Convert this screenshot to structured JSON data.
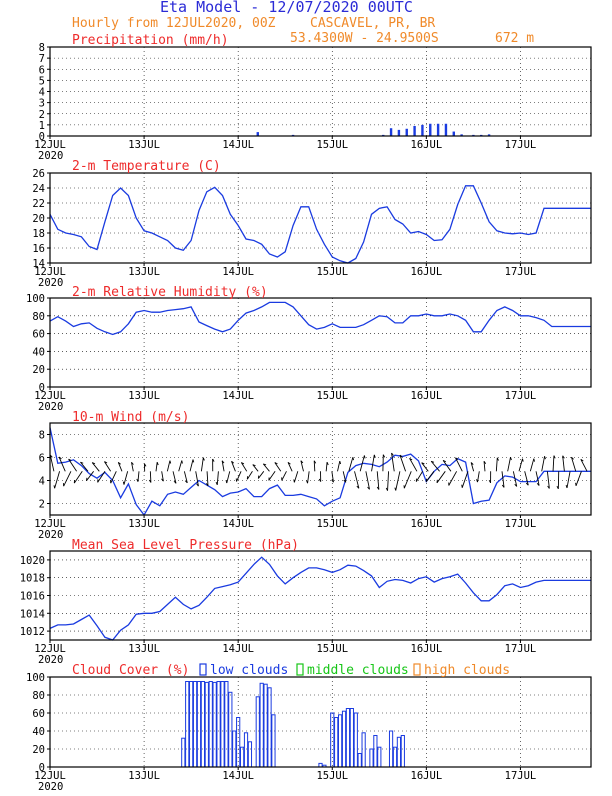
{
  "header": {
    "title": "Eta Model - 12/07/2020 00UTC",
    "subtitle": "Hourly from 12JUL2020, 00Z",
    "location": "CASCAVEL, PR, BR",
    "coords": "53.4300W - 24.9500S",
    "elevation": "672  m"
  },
  "colors": {
    "title": "#2b2bd6",
    "subtitle": "#f08a2a",
    "panel_title": "#ee2b2b",
    "series": "#1a3be0",
    "low": "#1a3be0",
    "middle": "#17c617",
    "high": "#f08a2a"
  },
  "chart_data": [
    {
      "id": "precip",
      "type": "bar",
      "title": "Precipitation (mm/h)",
      "ylim": [
        0,
        8
      ],
      "yticks": [
        0,
        1,
        2,
        3,
        4,
        5,
        6,
        7,
        8
      ],
      "x_labels": [
        "12JUL",
        "13JUL",
        "14JUL",
        "15JUL",
        "16JUL",
        "17JUL"
      ],
      "year_label": "2020",
      "x": [
        53,
        62,
        85,
        87,
        89,
        91,
        93,
        95,
        97,
        99,
        101,
        103,
        105,
        108,
        110,
        112
      ],
      "values": [
        0.35,
        0.1,
        0.1,
        0.7,
        0.55,
        0.65,
        0.9,
        1.0,
        1.1,
        1.1,
        1.1,
        0.4,
        0.15,
        0.1,
        0.1,
        0.15
      ]
    },
    {
      "id": "temp",
      "type": "line",
      "title": "2-m Temperature (C)",
      "ylim": [
        14,
        26
      ],
      "yticks": [
        14,
        16,
        18,
        20,
        22,
        24,
        26
      ],
      "x_labels": [
        "12JUL",
        "13JUL",
        "14JUL",
        "15JUL",
        "16JUL",
        "17JUL"
      ],
      "year_label": "2020",
      "x": [
        0,
        2,
        4,
        6,
        8,
        10,
        12,
        14,
        16,
        18,
        20,
        22,
        24,
        26,
        28,
        30,
        32,
        34,
        36,
        38,
        40,
        42,
        44,
        46,
        48,
        50,
        52,
        54,
        56,
        58,
        60,
        62,
        64,
        66,
        68,
        70,
        72,
        74,
        76,
        78,
        80,
        82,
        84,
        86,
        88,
        90,
        92,
        94,
        96,
        98,
        100,
        102,
        104,
        106,
        108,
        110,
        112,
        114,
        116,
        118,
        120,
        122,
        124,
        126,
        128,
        130,
        132,
        134,
        136,
        138
      ],
      "values": [
        20.5,
        18.5,
        18,
        17.8,
        17.5,
        16.2,
        15.8,
        19.5,
        23,
        24,
        23,
        20,
        18.3,
        18,
        17.5,
        17,
        16,
        15.7,
        17,
        21,
        23.5,
        24.1,
        23,
        20.5,
        19,
        17.2,
        17,
        16.5,
        15.2,
        14.8,
        15.5,
        19,
        21.5,
        21.5,
        18.5,
        16.5,
        14.8,
        14.3,
        14.0,
        14.6,
        16.8,
        20.5,
        21.3,
        21.5,
        19.8,
        19.2,
        18,
        18.2,
        17.8,
        17,
        17.1,
        18.5,
        21.8,
        24.3,
        24.3,
        22,
        19.5,
        18.3,
        18,
        17.9,
        18,
        17.8,
        18,
        21.3,
        21.3,
        21.3,
        21.3,
        21.3,
        21.3,
        21.3
      ]
    },
    {
      "id": "rh",
      "type": "line",
      "title": "2-m Relative Humidity (%)",
      "ylim": [
        0,
        100
      ],
      "yticks": [
        0,
        20,
        40,
        60,
        80,
        100
      ],
      "x_labels": [
        "12JUL",
        "13JUL",
        "14JUL",
        "15JUL",
        "16JUL",
        "17JUL"
      ],
      "year_label": "2020",
      "x": [
        0,
        2,
        4,
        6,
        8,
        10,
        12,
        14,
        16,
        18,
        20,
        22,
        24,
        26,
        28,
        30,
        32,
        34,
        36,
        38,
        40,
        42,
        44,
        46,
        48,
        50,
        52,
        54,
        56,
        58,
        60,
        62,
        64,
        66,
        68,
        70,
        72,
        74,
        76,
        78,
        80,
        82,
        84,
        86,
        88,
        90,
        92,
        94,
        96,
        98,
        100,
        102,
        104,
        106,
        108,
        110,
        112,
        114,
        116,
        118,
        120,
        122,
        124,
        126,
        128,
        130,
        132,
        134,
        136,
        138
      ],
      "values": [
        74,
        79,
        74,
        68,
        71,
        72,
        66,
        62,
        59,
        62,
        71,
        84,
        86,
        84,
        84,
        86,
        87,
        88,
        90,
        73,
        69,
        65,
        62,
        65,
        75,
        83,
        86,
        90,
        95,
        95,
        95,
        90,
        80,
        70,
        65,
        67,
        71,
        67,
        67,
        67,
        70,
        75,
        80,
        79,
        72,
        72,
        80,
        80,
        82,
        80,
        80,
        82,
        80,
        75,
        62,
        62,
        75,
        86,
        90,
        86,
        80,
        80,
        78,
        75,
        68,
        68,
        68,
        68,
        68,
        68
      ]
    },
    {
      "id": "wind",
      "type": "line",
      "title": "10-m Wind (m/s)",
      "ylim": [
        1,
        9
      ],
      "yticks": [
        2,
        4,
        6,
        8
      ],
      "x_labels": [
        "12JUL",
        "13JUL",
        "14JUL",
        "15JUL",
        "16JUL",
        "17JUL"
      ],
      "year_label": "2020",
      "x": [
        0,
        2,
        4,
        6,
        8,
        10,
        12,
        14,
        16,
        18,
        20,
        22,
        24,
        26,
        28,
        30,
        32,
        34,
        36,
        38,
        40,
        42,
        44,
        46,
        48,
        50,
        52,
        54,
        56,
        58,
        60,
        62,
        64,
        66,
        68,
        70,
        72,
        74,
        76,
        78,
        80,
        82,
        84,
        86,
        88,
        90,
        92,
        94,
        96,
        98,
        100,
        102,
        104,
        106,
        108,
        110,
        112,
        114,
        116,
        118,
        120,
        122,
        124,
        126,
        128,
        130,
        132,
        134,
        136,
        138
      ],
      "values": [
        8.6,
        5.5,
        5.6,
        5.8,
        5.3,
        4.6,
        4.2,
        4.7,
        4.0,
        2.5,
        3.7,
        1.9,
        1.0,
        2.2,
        1.8,
        2.8,
        3.0,
        2.8,
        3.4,
        4.0,
        3.6,
        3.2,
        2.6,
        2.9,
        3.0,
        3.3,
        2.6,
        2.6,
        3.3,
        3.6,
        2.7,
        2.7,
        2.8,
        2.6,
        2.4,
        1.8,
        2.2,
        2.5,
        4.7,
        5.3,
        5.5,
        5.4,
        5.2,
        5.6,
        6.2,
        6.1,
        6.3,
        5.7,
        3.9,
        4.8,
        5.4,
        5.3,
        5.9,
        5.6,
        2.0,
        2.2,
        2.3,
        3.8,
        4.4,
        4.3,
        3.9,
        3.9,
        3.9,
        4.8,
        4.8,
        4.8,
        4.8,
        4.8,
        4.8,
        4.8
      ],
      "arrow_count": 95
    },
    {
      "id": "mslp",
      "type": "line",
      "title": "Mean Sea Level Pressure (hPa)",
      "ylim": [
        1011,
        1021
      ],
      "yticks": [
        1012,
        1014,
        1016,
        1018,
        1020
      ],
      "x_labels": [
        "12JUL",
        "13JUL",
        "14JUL",
        "15JUL",
        "16JUL",
        "17JUL"
      ],
      "year_label": "2020",
      "x": [
        0,
        2,
        4,
        6,
        8,
        10,
        12,
        14,
        16,
        18,
        20,
        22,
        24,
        26,
        28,
        30,
        32,
        34,
        36,
        38,
        40,
        42,
        44,
        46,
        48,
        50,
        52,
        54,
        56,
        58,
        60,
        62,
        64,
        66,
        68,
        70,
        72,
        74,
        76,
        78,
        80,
        82,
        84,
        86,
        88,
        90,
        92,
        94,
        96,
        98,
        100,
        102,
        104,
        106,
        108,
        110,
        112,
        114,
        116,
        118,
        120,
        122,
        124,
        126,
        128,
        130,
        132,
        134,
        136,
        138
      ],
      "values": [
        1012.3,
        1012.7,
        1012.7,
        1012.8,
        1013.3,
        1013.8,
        1012.6,
        1011.3,
        1011.0,
        1012.1,
        1012.7,
        1013.9,
        1014.0,
        1014.0,
        1014.2,
        1015.0,
        1015.8,
        1015.0,
        1014.5,
        1014.9,
        1015.8,
        1016.8,
        1017.0,
        1017.2,
        1017.5,
        1018.5,
        1019.5,
        1020.3,
        1019.5,
        1018.2,
        1017.3,
        1018.0,
        1018.6,
        1019.1,
        1019.1,
        1018.9,
        1018.6,
        1018.9,
        1019.4,
        1019.3,
        1018.8,
        1018.2,
        1016.9,
        1017.6,
        1017.8,
        1017.7,
        1017.4,
        1017.9,
        1018.1,
        1017.5,
        1017.9,
        1018.1,
        1018.4,
        1017.4,
        1016.3,
        1015.4,
        1015.4,
        1016.1,
        1017.1,
        1017.3,
        1016.9,
        1017.1,
        1017.5,
        1017.7,
        1017.7,
        1017.7,
        1017.7,
        1017.7,
        1017.7,
        1017.7
      ]
    },
    {
      "id": "cloud",
      "type": "bar",
      "title": "Cloud Cover (%)",
      "legend": [
        "low clouds",
        "middle clouds",
        "high clouds"
      ],
      "ylim": [
        0,
        100
      ],
      "yticks": [
        0,
        20,
        40,
        60,
        80,
        100
      ],
      "x_labels": [
        "12JUL",
        "13JUL",
        "14JUL",
        "15JUL",
        "16JUL",
        "17JUL"
      ],
      "year_label": "2020",
      "x": [
        34,
        35,
        36,
        37,
        38,
        39,
        40,
        41,
        42,
        43,
        44,
        45,
        46,
        47,
        48,
        49,
        50,
        51,
        52,
        53,
        54,
        55,
        56,
        57,
        69,
        70,
        72,
        73,
        74,
        75,
        76,
        77,
        78,
        79,
        80,
        81,
        82,
        83,
        84,
        85,
        86,
        87,
        88,
        89,
        90
      ],
      "values": [
        32,
        95,
        95,
        95,
        95,
        95,
        94,
        95,
        94,
        95,
        95,
        95,
        83,
        40,
        55,
        22,
        38,
        28,
        0,
        78,
        93,
        92,
        88,
        58,
        4,
        2,
        60,
        55,
        58,
        62,
        65,
        65,
        60,
        15,
        38,
        0,
        20,
        35,
        22,
        0,
        0,
        40,
        22,
        33,
        35
      ]
    }
  ]
}
